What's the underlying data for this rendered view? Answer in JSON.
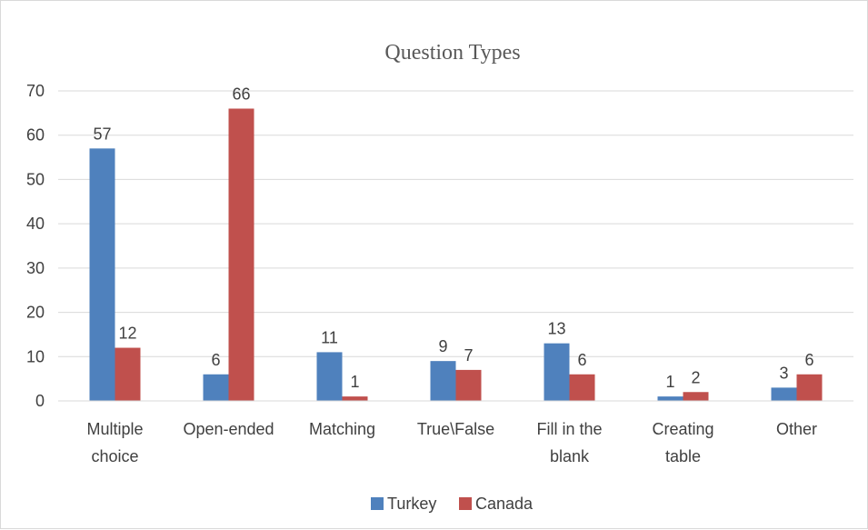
{
  "chart_data": {
    "type": "bar",
    "title": "Question Types",
    "categories": [
      [
        "Multiple",
        "choice"
      ],
      [
        "Open-ended"
      ],
      [
        "Matching"
      ],
      [
        "True\\False"
      ],
      [
        "Fill in the",
        "blank"
      ],
      [
        "Creating",
        "table"
      ],
      [
        "Other"
      ]
    ],
    "series": [
      {
        "name": "Turkey",
        "color": "#4f81bd",
        "values": [
          57,
          6,
          11,
          9,
          13,
          1,
          3
        ]
      },
      {
        "name": "Canada",
        "color": "#c0504d",
        "values": [
          12,
          66,
          1,
          7,
          6,
          2,
          6
        ]
      }
    ],
    "ylim": [
      0,
      70
    ],
    "yticks": [
      0,
      10,
      20,
      30,
      40,
      50,
      60,
      70
    ],
    "grid": true,
    "legend_position": "bottom",
    "xlabel": "",
    "ylabel": ""
  }
}
